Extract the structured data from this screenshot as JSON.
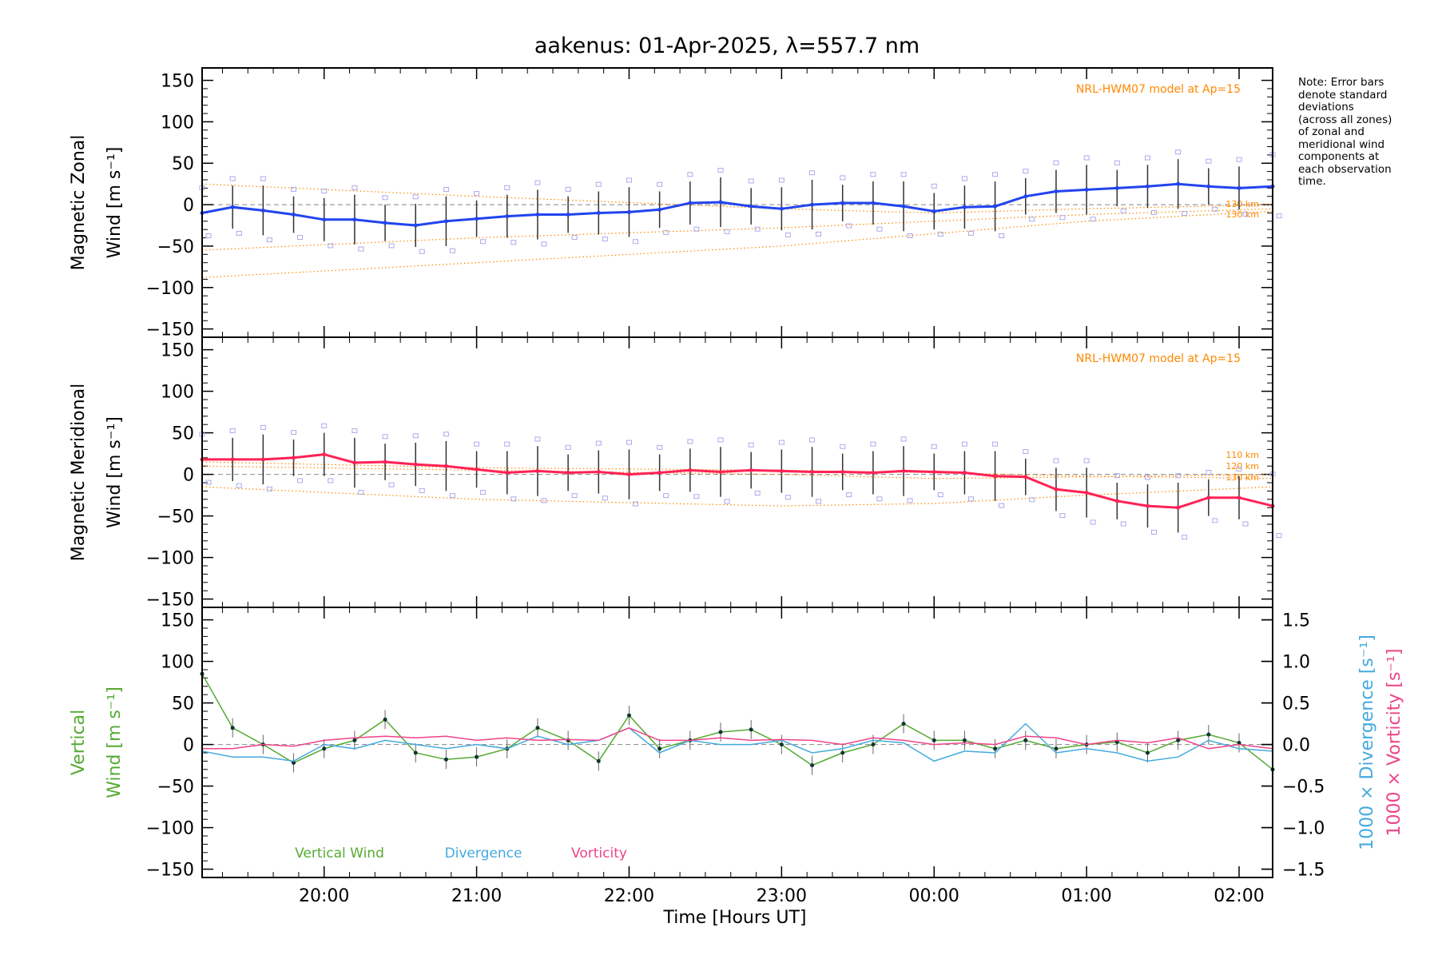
{
  "chart_data": {
    "type": "line",
    "title": "aakenus: 01-Apr-2025, λ=557.7 nm",
    "xlabel": "Time [Hours UT]",
    "x_range_hours": [
      -4.8,
      2.22
    ],
    "x_ticks": [
      {
        "hour": -4.0,
        "label": "20:00"
      },
      {
        "hour": -3.0,
        "label": "21:00"
      },
      {
        "hour": -2.0,
        "label": "22:00"
      },
      {
        "hour": -1.0,
        "label": "23:00"
      },
      {
        "hour": 0.0,
        "label": "00:00"
      },
      {
        "hour": 1.0,
        "label": "01:00"
      },
      {
        "hour": 2.0,
        "label": "02:00"
      }
    ],
    "note": "Note: Error bars\ndenote standard\ndeviations\n(across all zones)\nof zonal and\nmeridional wind\ncomponents at\neach observation\ntime.",
    "panels": [
      {
        "id": "zonal",
        "ylabel_line1": "Magnetic Zonal",
        "ylabel_line2": "Wind [m s⁻¹]",
        "ylim": [
          -160,
          165
        ],
        "yticks": [
          150,
          100,
          50,
          0,
          -50,
          -100,
          -150
        ],
        "ytick_labels": [
          "150",
          "100",
          "50",
          "0",
          "−50",
          "−100",
          "−150"
        ],
        "model_label": "NRL-HWM07 model at Ap=15",
        "model_alt_labels": [
          "130 km",
          "130 km"
        ],
        "color": "#2244ee",
        "series": {
          "name": "Magnetic Zonal Wind",
          "x": [
            -4.8,
            -4.6,
            -4.4,
            -4.2,
            -4.0,
            -3.8,
            -3.6,
            -3.4,
            -3.2,
            -3.0,
            -2.8,
            -2.6,
            -2.4,
            -2.2,
            -2.0,
            -1.8,
            -1.6,
            -1.4,
            -1.2,
            -1.0,
            -0.8,
            -0.6,
            -0.4,
            -0.2,
            0.0,
            0.2,
            0.4,
            0.6,
            0.8,
            1.0,
            1.2,
            1.4,
            1.6,
            1.8,
            2.0,
            2.22
          ],
          "y": [
            -10,
            -3,
            -7,
            -12,
            -18,
            -18,
            -22,
            -25,
            -20,
            -17,
            -14,
            -12,
            -12,
            -10,
            -9,
            -6,
            2,
            3,
            -2,
            -5,
            0,
            2,
            2,
            -2,
            -8,
            -3,
            -2,
            10,
            16,
            18,
            20,
            22,
            25,
            22,
            20,
            22
          ]
        },
        "model_series": [
          {
            "name": "model-1",
            "x": [
              -4.8,
              -3.0,
              -1.0,
              0.0,
              1.0,
              2.22
            ],
            "y": [
              -55,
              -40,
              -28,
              -20,
              -12,
              -5
            ]
          },
          {
            "name": "model-2",
            "x": [
              -4.8,
              -3.0,
              -1.0,
              0.0,
              1.0,
              2.22
            ],
            "y": [
              -88,
              -70,
              -50,
              -35,
              -20,
              -8
            ]
          },
          {
            "name": "model-3",
            "x": [
              -4.8,
              -3.0,
              -1.0,
              0.0,
              1.0,
              2.22
            ],
            "y": [
              25,
              10,
              -5,
              -10,
              -5,
              0
            ]
          }
        ]
      },
      {
        "id": "meridional",
        "ylabel_line1": "Magnetic Meridional",
        "ylabel_line2": "Wind [m s⁻¹]",
        "ylim": [
          -160,
          165
        ],
        "yticks": [
          150,
          100,
          50,
          0,
          -50,
          -100,
          -150
        ],
        "ytick_labels": [
          "150",
          "100",
          "50",
          "0",
          "−50",
          "−100",
          "−150"
        ],
        "model_label": "NRL-HWM07 model at Ap=15",
        "model_alt_labels": [
          "110 km",
          "120 km",
          "130 km"
        ],
        "color": "#ff2255",
        "series": {
          "name": "Magnetic Meridional Wind",
          "x": [
            -4.8,
            -4.6,
            -4.4,
            -4.2,
            -4.0,
            -3.8,
            -3.6,
            -3.4,
            -3.2,
            -3.0,
            -2.8,
            -2.6,
            -2.4,
            -2.2,
            -2.0,
            -1.8,
            -1.6,
            -1.4,
            -1.2,
            -1.0,
            -0.8,
            -0.6,
            -0.4,
            -0.2,
            0.0,
            0.2,
            0.4,
            0.6,
            0.8,
            1.0,
            1.2,
            1.4,
            1.6,
            1.8,
            2.0,
            2.22
          ],
          "y": [
            18,
            18,
            18,
            20,
            24,
            14,
            15,
            12,
            10,
            6,
            2,
            4,
            2,
            3,
            0,
            2,
            5,
            3,
            5,
            4,
            3,
            3,
            2,
            4,
            3,
            2,
            -2,
            -3,
            -18,
            -22,
            -32,
            -38,
            -40,
            -28,
            -28,
            -38
          ]
        },
        "model_series": [
          {
            "name": "model-1",
            "x": [
              -4.8,
              -3.0,
              -1.0,
              0.0,
              1.0,
              2.22
            ],
            "y": [
              10,
              5,
              0,
              -5,
              -3,
              0
            ]
          },
          {
            "name": "model-2",
            "x": [
              -4.8,
              -3.0,
              -1.0,
              0.0,
              1.0,
              2.22
            ],
            "y": [
              -15,
              -30,
              -38,
              -35,
              -25,
              -15
            ]
          },
          {
            "name": "model-3",
            "x": [
              -4.8,
              -3.0,
              -1.0,
              0.0,
              1.0,
              2.22
            ],
            "y": [
              15,
              8,
              5,
              2,
              -2,
              -5
            ]
          }
        ]
      },
      {
        "id": "vertical",
        "ylabel_line1": "Vertical",
        "ylabel_line2": "Wind [m s⁻¹]",
        "ylim": [
          -160,
          165
        ],
        "yticks": [
          150,
          100,
          50,
          0,
          -50,
          -100,
          -150
        ],
        "ytick_labels": [
          "150",
          "100",
          "50",
          "0",
          "−50",
          "−100",
          "−150"
        ],
        "right_ylabel_div": "1000 × Divergence [s⁻¹]",
        "right_ylabel_vort": "1000 × Vorticity [s⁻¹]",
        "right_ylim": [
          -1.6,
          1.65
        ],
        "right_yticks": [
          1.5,
          1.0,
          0.5,
          0.0,
          -0.5,
          -1.0,
          -1.5
        ],
        "right_ytick_labels": [
          "1.5",
          "1.0",
          "0.5",
          "0.0",
          "−0.5",
          "−1.0",
          "−1.5"
        ],
        "legend": [
          "Vertical Wind",
          "Divergence",
          "Vorticity"
        ],
        "series": [
          {
            "name": "Vertical Wind",
            "color": "#55aa33",
            "axis": "left",
            "x": [
              -4.8,
              -4.6,
              -4.4,
              -4.2,
              -4.0,
              -3.8,
              -3.6,
              -3.4,
              -3.2,
              -3.0,
              -2.8,
              -2.6,
              -2.4,
              -2.2,
              -2.0,
              -1.8,
              -1.6,
              -1.4,
              -1.2,
              -1.0,
              -0.8,
              -0.6,
              -0.4,
              -0.2,
              0.0,
              0.2,
              0.4,
              0.6,
              0.8,
              1.0,
              1.2,
              1.4,
              1.6,
              1.8,
              2.0,
              2.22
            ],
            "y": [
              85,
              20,
              0,
              -22,
              -5,
              5,
              30,
              -10,
              -18,
              -15,
              -5,
              20,
              5,
              -20,
              35,
              -5,
              5,
              15,
              18,
              0,
              -25,
              -10,
              0,
              25,
              5,
              5,
              -5,
              5,
              -5,
              0,
              3,
              -10,
              5,
              12,
              2,
              -30
            ]
          },
          {
            "name": "Divergence",
            "color": "#44aadd",
            "axis": "right",
            "x": [
              -4.8,
              -4.6,
              -4.4,
              -4.2,
              -4.0,
              -3.8,
              -3.6,
              -3.4,
              -3.2,
              -3.0,
              -2.8,
              -2.6,
              -2.4,
              -2.2,
              -2.0,
              -1.8,
              -1.6,
              -1.4,
              -1.2,
              -1.0,
              -0.8,
              -0.6,
              -0.4,
              -0.2,
              0.0,
              0.2,
              0.4,
              0.6,
              0.8,
              1.0,
              1.2,
              1.4,
              1.6,
              1.8,
              2.0,
              2.22
            ],
            "y": [
              -0.08,
              -0.15,
              -0.15,
              -0.2,
              0.0,
              -0.05,
              0.05,
              0.0,
              -0.05,
              0.0,
              -0.05,
              0.1,
              0.0,
              0.05,
              0.2,
              -0.1,
              0.05,
              0.0,
              0.0,
              0.05,
              -0.1,
              -0.05,
              0.05,
              0.02,
              -0.2,
              -0.08,
              -0.1,
              0.25,
              -0.1,
              -0.05,
              -0.1,
              -0.2,
              -0.15,
              0.05,
              -0.05,
              -0.08
            ]
          },
          {
            "name": "Vorticity",
            "color": "#ee4488",
            "axis": "right",
            "x": [
              -4.8,
              -4.6,
              -4.4,
              -4.2,
              -4.0,
              -3.8,
              -3.6,
              -3.4,
              -3.2,
              -3.0,
              -2.8,
              -2.6,
              -2.4,
              -2.2,
              -2.0,
              -1.8,
              -1.6,
              -1.4,
              -1.2,
              -1.0,
              -0.8,
              -0.6,
              -0.4,
              -0.2,
              0.0,
              0.2,
              0.4,
              0.6,
              0.8,
              1.0,
              1.2,
              1.4,
              1.6,
              1.8,
              2.0,
              2.22
            ],
            "y": [
              -0.05,
              -0.05,
              0.0,
              -0.02,
              0.05,
              0.08,
              0.1,
              0.08,
              0.1,
              0.05,
              0.08,
              0.05,
              0.06,
              0.05,
              0.2,
              0.05,
              0.05,
              0.08,
              0.05,
              0.06,
              0.05,
              0.0,
              0.08,
              0.05,
              0.0,
              0.02,
              0.0,
              0.1,
              0.08,
              0.0,
              0.05,
              0.02,
              0.08,
              -0.05,
              0.0,
              -0.05
            ]
          }
        ]
      }
    ]
  }
}
